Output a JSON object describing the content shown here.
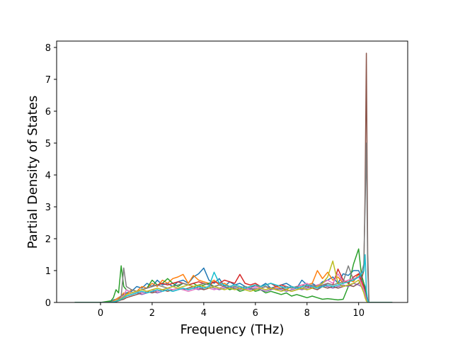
{
  "chart_data": {
    "type": "line",
    "title": "",
    "xlabel": "Frequency (THz)",
    "ylabel": "Partial Density of States",
    "xlim": [
      -1.7,
      11.9
    ],
    "ylim": [
      0,
      8.2
    ],
    "xticks": [
      0,
      2,
      4,
      6,
      8,
      10
    ],
    "yticks": [
      0,
      1,
      2,
      3,
      4,
      5,
      6,
      7,
      8
    ],
    "grid": false,
    "legend": "none",
    "x": [
      -1.0,
      0.0,
      0.4,
      0.5,
      0.6,
      0.7,
      0.8,
      0.9,
      1.0,
      1.2,
      1.4,
      1.6,
      1.8,
      2.0,
      2.2,
      2.4,
      2.6,
      2.8,
      3.0,
      3.2,
      3.4,
      3.6,
      3.8,
      4.0,
      4.2,
      4.4,
      4.6,
      4.8,
      5.0,
      5.2,
      5.4,
      5.6,
      5.8,
      6.0,
      6.2,
      6.4,
      6.6,
      6.8,
      7.0,
      7.2,
      7.4,
      7.6,
      7.8,
      8.0,
      8.2,
      8.4,
      8.6,
      8.8,
      9.0,
      9.2,
      9.4,
      9.6,
      9.8,
      10.0,
      10.1,
      10.2,
      10.25,
      10.3,
      10.35,
      10.4,
      10.5,
      11.3
    ],
    "series": [
      {
        "color": "#1f77b4",
        "values": [
          0,
          0,
          0.02,
          0.08,
          0.1,
          0.15,
          0.2,
          0.25,
          0.3,
          0.35,
          0.5,
          0.45,
          0.6,
          0.5,
          0.7,
          0.55,
          0.6,
          0.5,
          0.65,
          0.7,
          0.6,
          0.8,
          0.9,
          1.08,
          0.7,
          0.6,
          0.75,
          0.5,
          0.65,
          0.55,
          0.6,
          0.5,
          0.45,
          0.55,
          0.5,
          0.6,
          0.45,
          0.5,
          0.55,
          0.6,
          0.5,
          0.45,
          0.7,
          0.55,
          0.6,
          0.5,
          0.65,
          0.7,
          0.8,
          0.6,
          0.9,
          0.85,
          1.0,
          1.0,
          0.8,
          0.6,
          0.5,
          0.3,
          0.1,
          0,
          0,
          0
        ]
      },
      {
        "color": "#ff7f0e",
        "values": [
          0,
          0,
          0,
          0.05,
          0.1,
          0.15,
          0.2,
          0.3,
          0.25,
          0.4,
          0.35,
          0.5,
          0.45,
          0.6,
          0.5,
          0.7,
          0.6,
          0.75,
          0.8,
          0.88,
          0.6,
          0.85,
          0.7,
          0.65,
          0.6,
          0.7,
          0.55,
          0.6,
          0.5,
          0.55,
          0.5,
          0.45,
          0.5,
          0.55,
          0.45,
          0.5,
          0.4,
          0.5,
          0.45,
          0.4,
          0.5,
          0.45,
          0.5,
          0.55,
          0.6,
          1.0,
          0.75,
          0.95,
          0.7,
          0.8,
          0.6,
          0.7,
          0.65,
          0.9,
          0.6,
          0.5,
          0.4,
          0.2,
          0.05,
          0,
          0,
          0
        ]
      },
      {
        "color": "#2ca02c",
        "values": [
          0,
          0,
          0.05,
          0.15,
          0.4,
          0.3,
          1.15,
          0.5,
          0.4,
          0.3,
          0.35,
          0.4,
          0.45,
          0.7,
          0.55,
          0.6,
          0.75,
          0.6,
          0.5,
          0.6,
          0.55,
          0.6,
          0.5,
          0.55,
          0.6,
          0.5,
          0.45,
          0.5,
          0.4,
          0.45,
          0.35,
          0.4,
          0.45,
          0.35,
          0.4,
          0.3,
          0.35,
          0.3,
          0.25,
          0.3,
          0.2,
          0.25,
          0.2,
          0.15,
          0.2,
          0.15,
          0.1,
          0.12,
          0.1,
          0.08,
          0.1,
          0.5,
          1.2,
          1.68,
          0.9,
          0.6,
          0.4,
          0.2,
          0.05,
          0,
          0,
          0
        ]
      },
      {
        "color": "#d62728",
        "values": [
          0,
          0,
          0,
          0.02,
          0.05,
          0.1,
          0.15,
          0.2,
          0.25,
          0.3,
          0.35,
          0.4,
          0.45,
          0.5,
          0.55,
          0.6,
          0.55,
          0.6,
          0.65,
          0.6,
          0.55,
          0.6,
          0.65,
          0.6,
          0.55,
          0.65,
          0.6,
          0.7,
          0.65,
          0.6,
          0.88,
          0.6,
          0.55,
          0.6,
          0.5,
          0.55,
          0.6,
          0.5,
          0.55,
          0.5,
          0.45,
          0.5,
          0.55,
          0.5,
          0.45,
          0.55,
          0.5,
          0.6,
          0.55,
          1.05,
          0.7,
          0.6,
          0.8,
          0.9,
          0.7,
          0.5,
          0.3,
          0.15,
          0.05,
          0,
          0,
          0
        ]
      },
      {
        "color": "#9467bd",
        "values": [
          0,
          0,
          0,
          0.02,
          0.05,
          0.08,
          0.1,
          0.15,
          0.2,
          0.25,
          0.3,
          0.25,
          0.3,
          0.35,
          0.3,
          0.35,
          0.4,
          0.35,
          0.4,
          0.45,
          0.4,
          0.45,
          0.4,
          0.45,
          0.5,
          0.45,
          0.4,
          0.45,
          0.5,
          0.45,
          0.4,
          0.45,
          0.4,
          0.45,
          0.4,
          0.35,
          0.4,
          0.45,
          0.4,
          0.35,
          0.4,
          0.45,
          0.4,
          0.45,
          0.5,
          0.45,
          0.55,
          0.5,
          0.45,
          0.5,
          0.55,
          0.5,
          0.6,
          0.55,
          0.5,
          0.4,
          0.3,
          0.1,
          0.02,
          0,
          0,
          0
        ]
      },
      {
        "color": "#8c564b",
        "values": [
          0,
          0,
          0,
          0,
          0.02,
          0.05,
          0.08,
          0.1,
          0.15,
          0.2,
          0.25,
          0.3,
          0.35,
          0.3,
          0.35,
          0.4,
          0.35,
          0.4,
          0.45,
          0.4,
          0.45,
          0.5,
          0.45,
          0.4,
          0.45,
          0.5,
          0.55,
          0.5,
          0.45,
          0.5,
          0.45,
          0.4,
          0.45,
          0.4,
          0.45,
          0.5,
          0.45,
          0.4,
          0.45,
          0.4,
          0.35,
          0.4,
          0.45,
          0.4,
          0.45,
          0.4,
          0.5,
          0.45,
          0.5,
          0.45,
          0.5,
          0.55,
          0.5,
          0.6,
          0.7,
          1.0,
          3.5,
          7.82,
          1.5,
          0,
          0,
          0
        ]
      },
      {
        "color": "#e377c2",
        "values": [
          0,
          0,
          0,
          0.02,
          0.05,
          0.1,
          0.15,
          0.2,
          0.4,
          0.3,
          0.35,
          0.3,
          0.35,
          0.4,
          0.35,
          0.4,
          0.45,
          0.4,
          0.45,
          0.4,
          0.35,
          0.4,
          0.45,
          0.5,
          0.45,
          0.4,
          0.45,
          0.5,
          0.45,
          0.5,
          0.45,
          0.4,
          0.45,
          0.5,
          0.45,
          0.4,
          0.45,
          0.4,
          0.45,
          0.5,
          0.45,
          0.5,
          0.55,
          0.6,
          0.5,
          0.55,
          0.6,
          0.7,
          0.6,
          0.9,
          0.65,
          0.7,
          0.75,
          0.8,
          0.6,
          0.4,
          0.2,
          0.05,
          0,
          0,
          0,
          0
        ]
      },
      {
        "color": "#7f7f7f",
        "values": [
          0,
          0,
          0,
          0.02,
          0.05,
          0.1,
          0.2,
          1.08,
          0.5,
          0.4,
          0.35,
          0.4,
          0.45,
          0.5,
          0.55,
          0.5,
          0.45,
          0.5,
          0.55,
          0.6,
          0.55,
          0.5,
          0.55,
          0.6,
          0.55,
          0.5,
          0.55,
          0.5,
          0.45,
          0.5,
          0.45,
          0.5,
          0.45,
          0.4,
          0.45,
          0.5,
          0.45,
          0.4,
          0.45,
          0.5,
          0.45,
          0.5,
          0.45,
          0.5,
          0.55,
          0.5,
          0.55,
          0.6,
          0.55,
          0.6,
          0.65,
          1.15,
          0.7,
          0.8,
          0.9,
          1.2,
          3.0,
          5.0,
          1.0,
          0,
          0,
          0
        ]
      },
      {
        "color": "#bcbd22",
        "values": [
          0,
          0,
          0,
          0.02,
          0.05,
          0.08,
          0.12,
          0.18,
          0.25,
          0.3,
          0.35,
          0.4,
          0.35,
          0.4,
          0.45,
          0.4,
          0.45,
          0.5,
          0.45,
          0.5,
          0.55,
          0.5,
          0.55,
          0.5,
          0.45,
          0.5,
          0.45,
          0.4,
          0.45,
          0.4,
          0.45,
          0.4,
          0.35,
          0.4,
          0.45,
          0.4,
          0.45,
          0.4,
          0.35,
          0.4,
          0.35,
          0.4,
          0.45,
          0.4,
          0.45,
          0.5,
          0.6,
          0.8,
          1.3,
          0.6,
          0.5,
          0.55,
          0.6,
          0.7,
          0.5,
          0.3,
          0.15,
          0.05,
          0,
          0,
          0,
          0
        ]
      },
      {
        "color": "#17becf",
        "values": [
          0,
          0,
          0,
          0.02,
          0.04,
          0.06,
          0.1,
          0.15,
          0.2,
          0.25,
          0.3,
          0.35,
          0.3,
          0.35,
          0.4,
          0.35,
          0.4,
          0.35,
          0.4,
          0.45,
          0.4,
          0.45,
          0.5,
          0.45,
          0.5,
          0.95,
          0.6,
          0.55,
          0.5,
          0.55,
          0.5,
          0.45,
          0.5,
          0.55,
          0.5,
          0.55,
          0.6,
          0.55,
          0.5,
          0.45,
          0.5,
          0.45,
          0.5,
          0.55,
          0.5,
          0.45,
          0.5,
          0.55,
          0.5,
          0.55,
          0.6,
          0.65,
          0.7,
          0.8,
          0.9,
          1.0,
          1.5,
          0.4,
          0.05,
          0,
          0,
          0
        ]
      }
    ]
  }
}
